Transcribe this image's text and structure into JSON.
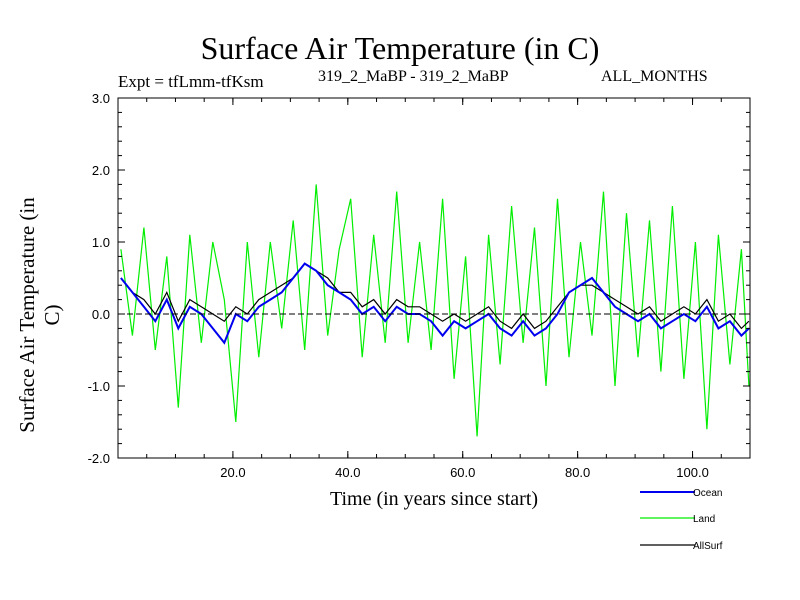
{
  "chart_data": {
    "type": "line",
    "title": "Surface Air Temperature (in C)",
    "subtitle_left": "Expt = tfLmm-tfKsm",
    "subtitle_center": "319_2_MaBP - 319_2_MaBP",
    "subtitle_right": "ALL_MONTHS",
    "xlabel": "Time (in years since start)",
    "ylabel": "Surface Air Temperature (in C)",
    "xlim": [
      0,
      110
    ],
    "ylim": [
      -2.0,
      3.0
    ],
    "xticks": [
      20.0,
      40.0,
      60.0,
      80.0,
      100.0
    ],
    "xtick_labels": [
      "20.0",
      "40.0",
      "60.0",
      "80.0",
      "100.0"
    ],
    "yticks": [
      -2.0,
      -1.0,
      0.0,
      1.0,
      2.0,
      3.0
    ],
    "ytick_labels": [
      "-2.0",
      "-1.0",
      "0.0",
      "1.0",
      "2.0",
      "3.0"
    ],
    "zero_line": true,
    "legend_position": "bottom-right",
    "x": [
      0.5,
      2.5,
      4.5,
      6.5,
      8.5,
      10.5,
      12.5,
      14.5,
      16.5,
      18.5,
      20.5,
      22.5,
      24.5,
      26.5,
      28.5,
      30.5,
      32.5,
      34.5,
      36.5,
      38.5,
      40.5,
      42.5,
      44.5,
      46.5,
      48.5,
      50.5,
      52.5,
      54.5,
      56.5,
      58.5,
      60.5,
      62.5,
      64.5,
      66.5,
      68.5,
      70.5,
      72.5,
      74.5,
      76.5,
      78.5,
      80.5,
      82.5,
      84.5,
      86.5,
      88.5,
      90.5,
      92.5,
      94.5,
      96.5,
      98.5,
      100.5,
      102.5,
      104.5,
      106.5,
      108.5,
      109.8
    ],
    "series": [
      {
        "name": "Land",
        "color": "#00ee00",
        "values": [
          0.9,
          -0.3,
          1.2,
          -0.5,
          0.8,
          -1.3,
          1.1,
          -0.4,
          1.0,
          0.2,
          -1.5,
          1.0,
          -0.6,
          1.0,
          -0.2,
          1.3,
          -0.5,
          1.8,
          -0.3,
          0.9,
          1.6,
          -0.6,
          1.1,
          -0.4,
          1.7,
          -0.4,
          1.0,
          -0.5,
          1.6,
          -0.9,
          0.8,
          -1.7,
          1.1,
          -0.7,
          1.5,
          -0.4,
          1.2,
          -1.0,
          1.6,
          -0.6,
          1.0,
          -0.3,
          1.7,
          -1.0,
          1.4,
          -0.6,
          1.3,
          -0.8,
          1.5,
          -0.9,
          1.0,
          -1.6,
          1.1,
          -0.7,
          0.9,
          -1.0
        ]
      },
      {
        "name": "AllSurf",
        "color": "#000000",
        "values": [
          0.5,
          0.3,
          0.2,
          0.0,
          0.3,
          -0.1,
          0.2,
          0.1,
          0.0,
          -0.1,
          0.1,
          0.0,
          0.2,
          0.3,
          0.4,
          0.5,
          0.7,
          0.6,
          0.5,
          0.3,
          0.3,
          0.1,
          0.2,
          0.0,
          0.2,
          0.1,
          0.1,
          0.0,
          -0.1,
          0.0,
          -0.1,
          0.0,
          0.1,
          -0.1,
          -0.2,
          0.0,
          -0.2,
          -0.1,
          0.1,
          0.3,
          0.4,
          0.4,
          0.3,
          0.2,
          0.1,
          0.0,
          0.1,
          -0.1,
          0.0,
          0.1,
          0.0,
          0.2,
          -0.1,
          0.0,
          -0.2,
          -0.1
        ]
      },
      {
        "name": "Ocean",
        "color": "#0000ee",
        "values": [
          0.5,
          0.3,
          0.1,
          -0.1,
          0.2,
          -0.2,
          0.1,
          0.0,
          -0.2,
          -0.4,
          0.0,
          -0.1,
          0.1,
          0.2,
          0.3,
          0.5,
          0.7,
          0.6,
          0.4,
          0.3,
          0.2,
          0.0,
          0.1,
          -0.1,
          0.1,
          0.0,
          0.0,
          -0.1,
          -0.3,
          -0.1,
          -0.2,
          -0.1,
          0.0,
          -0.2,
          -0.3,
          -0.1,
          -0.3,
          -0.2,
          0.0,
          0.3,
          0.4,
          0.5,
          0.3,
          0.1,
          0.0,
          -0.1,
          0.0,
          -0.2,
          -0.1,
          0.0,
          -0.1,
          0.1,
          -0.2,
          -0.1,
          -0.3,
          -0.2
        ]
      }
    ],
    "legend": [
      {
        "name": "Ocean",
        "color": "#0000ee"
      },
      {
        "name": "Land",
        "color": "#00ee00"
      },
      {
        "name": "AllSurf",
        "color": "#000000"
      }
    ]
  }
}
